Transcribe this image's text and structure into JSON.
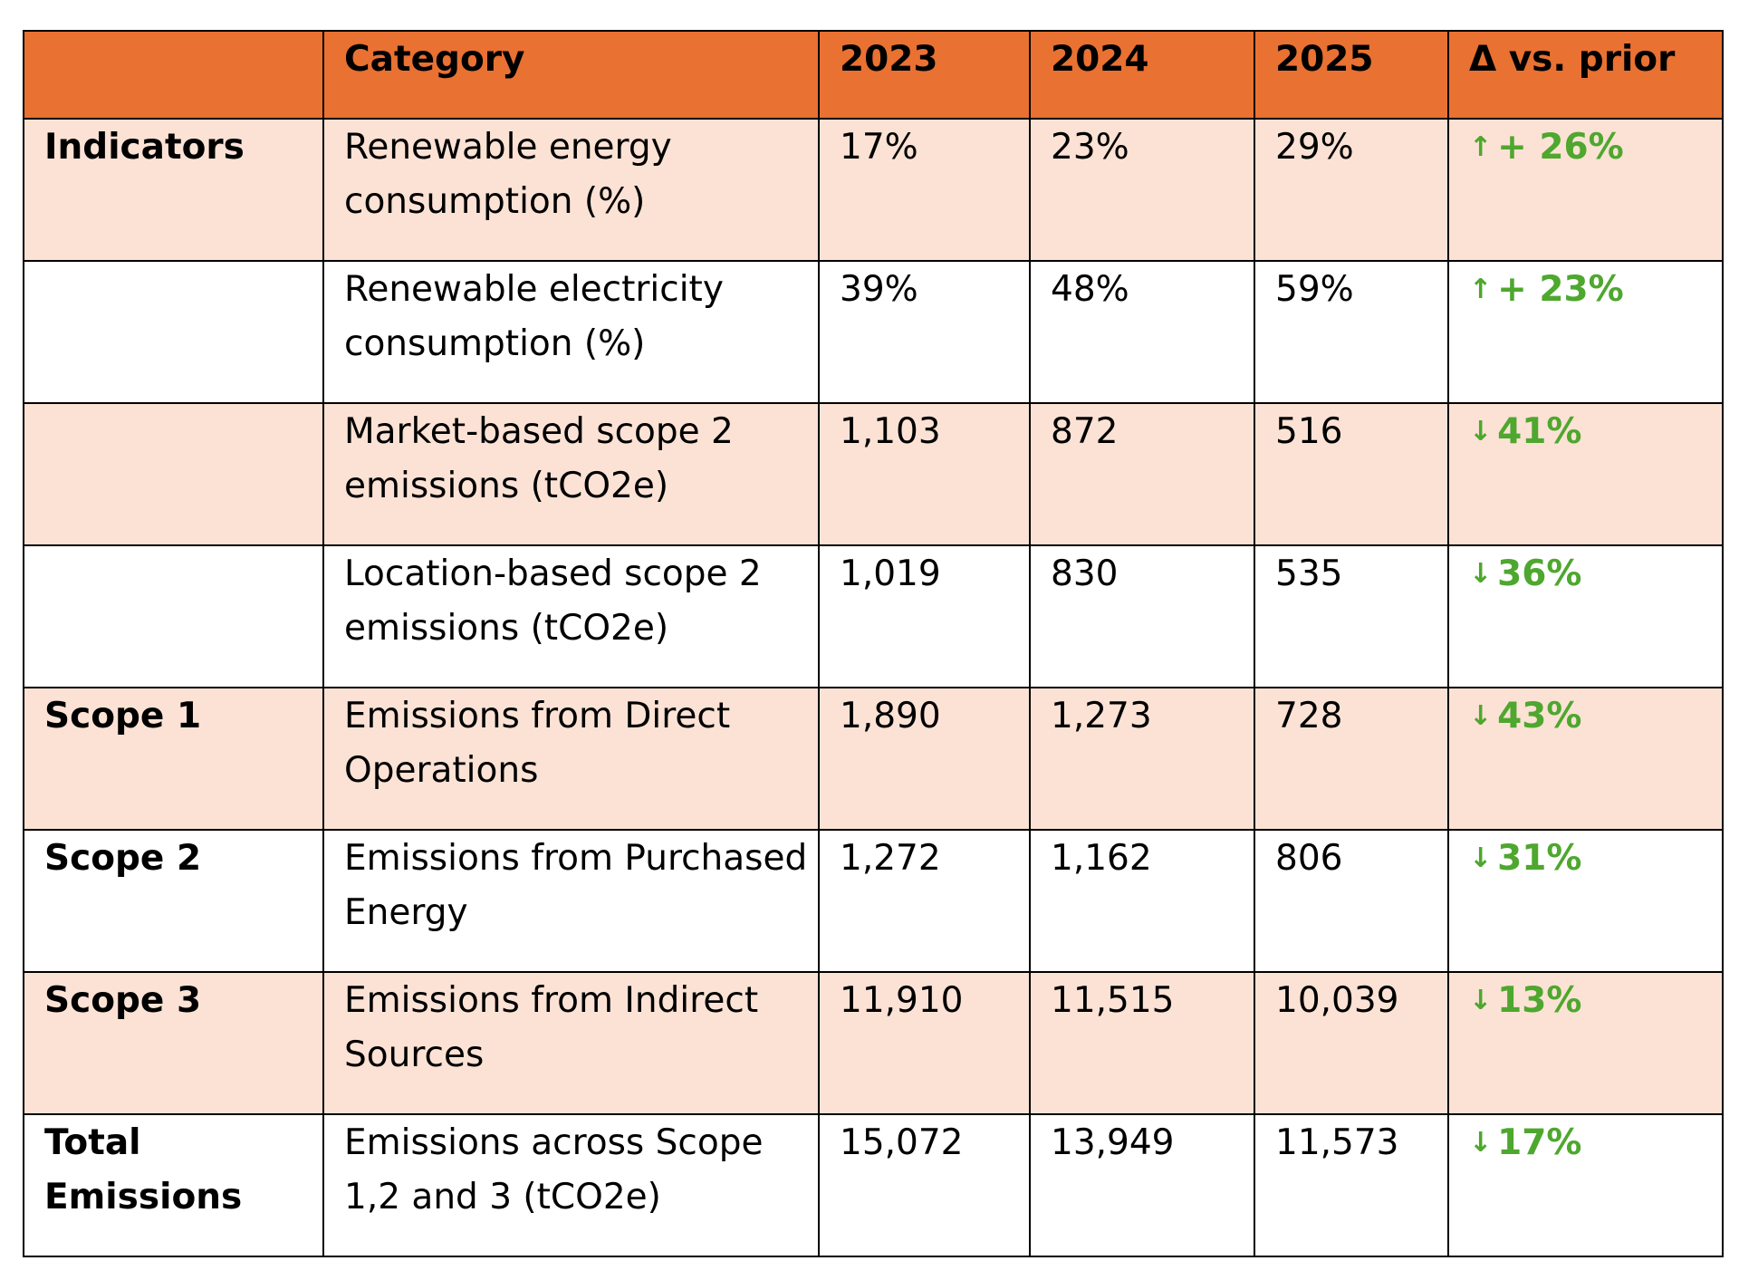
{
  "table": {
    "header": [
      "",
      "Category",
      "2023",
      "2024",
      "2025",
      "Δ vs. prior"
    ],
    "rows": [
      {
        "label": "Indicators",
        "category": "Renewable energy consumption (%)",
        "y2023": "17%",
        "y2024": "23%",
        "y2025": "29%",
        "arrow": "↑",
        "delta": "+ 26%",
        "shaded": true
      },
      {
        "label": "",
        "category": "Renewable electricity consumption (%)",
        "y2023": "39%",
        "y2024": "48%",
        "y2025": "59%",
        "arrow": "↑",
        "delta": "+ 23%",
        "shaded": false
      },
      {
        "label": "",
        "category": "Market-based scope 2 emissions (tCO2e)",
        "y2023": "1,103",
        "y2024": "872",
        "y2025": "516",
        "arrow": "↓",
        "delta": "41%",
        "shaded": true
      },
      {
        "label": "",
        "category": "Location-based scope 2 emissions (tCO2e)",
        "y2023": "1,019",
        "y2024": "830",
        "y2025": "535",
        "arrow": "↓",
        "delta": "36%",
        "shaded": false
      },
      {
        "label": "Scope 1",
        "category": "Emissions from Direct Operations",
        "y2023": "1,890",
        "y2024": "1,273",
        "y2025": "728",
        "arrow": "↓",
        "delta": "43%",
        "shaded": true
      },
      {
        "label": "Scope 2",
        "category": "Emissions from Purchased Energy",
        "y2023": "1,272",
        "y2024": "1,162",
        "y2025": "806",
        "arrow": "↓",
        "delta": "31%",
        "shaded": false
      },
      {
        "label": "Scope 3",
        "category": "Emissions from Indirect Sources",
        "y2023": "11,910",
        "y2024": "11,515",
        "y2025": "10,039",
        "arrow": "↓",
        "delta": "13%",
        "shaded": true
      },
      {
        "label": "Total Emissions",
        "category": "Emissions across Scope 1,2 and 3 (tCO2e)",
        "y2023": "15,072",
        "y2024": "13,949",
        "y2025": "11,573",
        "arrow": "↓",
        "delta": "17%",
        "shaded": false
      }
    ]
  },
  "colors": {
    "header_bg": "#e97132",
    "shaded_row_bg": "#fbe2d5",
    "delta_text": "#4ea72e"
  }
}
